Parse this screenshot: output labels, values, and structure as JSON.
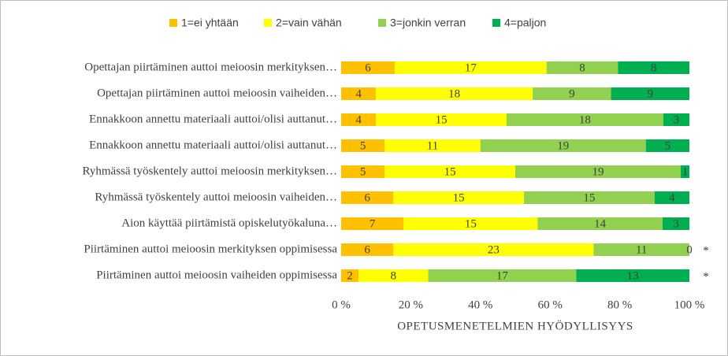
{
  "chart_data": {
    "type": "bar",
    "orientation": "horizontal",
    "stacking": "percent",
    "categories": [
      "Opettajan piirtäminen auttoi meioosin merkityksen…",
      "Opettajan piirtäminen auttoi meioosin vaiheiden…",
      "Ennakkoon annettu materiaali auttoi/olisi auttanut…",
      "Ennakkoon annettu materiaali auttoi/olisi auttanut…",
      "Ryhmässä työskentely auttoi meioosin merkityksen…",
      "Ryhmässä työskentely auttoi meioosin vaiheiden…",
      "Aion käyttää piirtämistä opiskelutyökaluna…",
      "Piirtäminen auttoi meioosin merkityksen oppimisessa",
      "Piirtäminen auttoi meioosin vaiheiden oppimisessa"
    ],
    "row_notes": [
      null,
      null,
      null,
      null,
      null,
      null,
      null,
      "*",
      "*"
    ],
    "series": [
      {
        "name": "1=ei yhtään",
        "color": "#FFC000",
        "values": [
          6,
          4,
          4,
          5,
          5,
          6,
          7,
          6,
          2
        ]
      },
      {
        "name": "2=vain vähän",
        "color": "#FFFF00",
        "values": [
          17,
          18,
          15,
          11,
          15,
          15,
          15,
          23,
          8
        ]
      },
      {
        "name": "3=jonkin verran",
        "color": "#92D050",
        "values": [
          8,
          9,
          18,
          19,
          19,
          15,
          14,
          11,
          17
        ]
      },
      {
        "name": "4=paljon",
        "color": "#00B050",
        "values": [
          8,
          9,
          3,
          5,
          1,
          4,
          3,
          0,
          13
        ]
      }
    ],
    "xlim": [
      0,
      100
    ],
    "xticks": [
      {
        "value": 0,
        "label": "0 %"
      },
      {
        "value": 20,
        "label": "20 %"
      },
      {
        "value": 40,
        "label": "40 %"
      },
      {
        "value": 60,
        "label": "60 %"
      },
      {
        "value": 80,
        "label": "80 %"
      },
      {
        "value": 100,
        "label": "100 %"
      }
    ],
    "x_label": "OPETUSMENETELMIEN HYÖDYLLISYYS",
    "legend": "top"
  }
}
